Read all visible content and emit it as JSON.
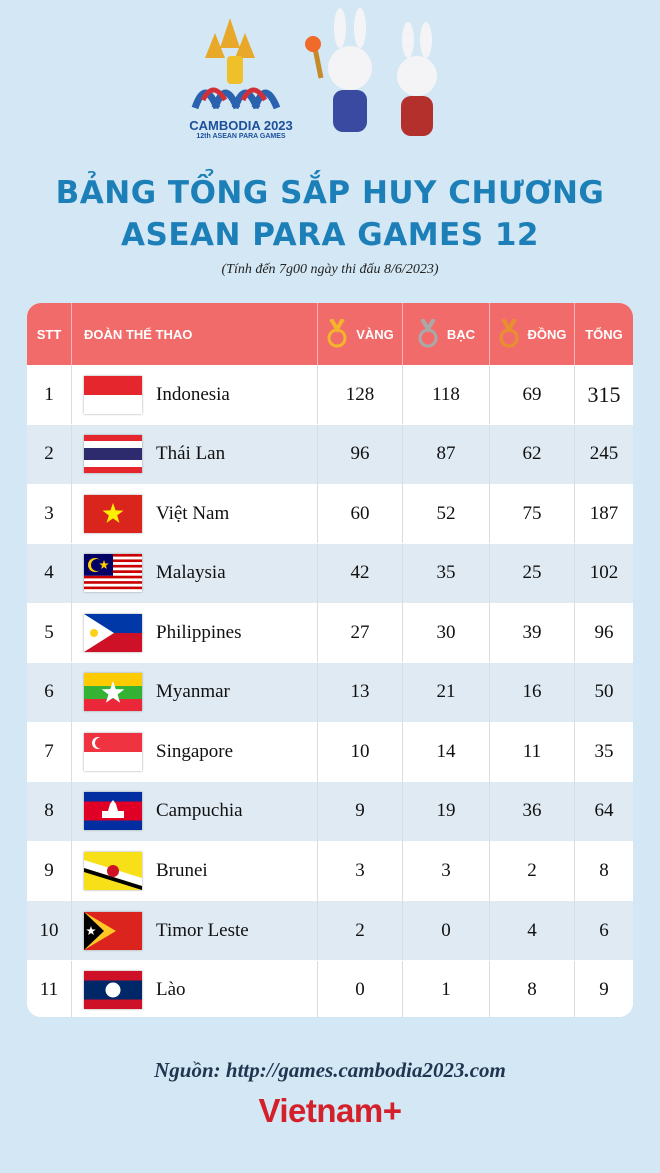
{
  "logo": {
    "name": "CAMBODIA 2023",
    "subtitle": "12th ASEAN PARA GAMES"
  },
  "header": {
    "title_line1": "BẢNG TỔNG SẮP HUY CHƯƠNG",
    "title_line2": "ASEAN PARA GAMES 12",
    "note": "(Tính đến 7g00 ngày thi đấu 8/6/2023)"
  },
  "table": {
    "columns": [
      "STT",
      "ĐOÀN THỂ THAO",
      "VÀNG",
      "BẠC",
      "ĐỒNG",
      "TỔNG"
    ],
    "rows": [
      [
        1,
        "Indonesia",
        128,
        118,
        69,
        315
      ],
      [
        2,
        "Thái Lan",
        96,
        87,
        62,
        245
      ],
      [
        3,
        "Việt Nam",
        60,
        52,
        75,
        187
      ],
      [
        4,
        "Malaysia",
        42,
        35,
        25,
        102
      ],
      [
        5,
        "Philippines",
        27,
        30,
        39,
        96
      ],
      [
        6,
        "Myanmar",
        13,
        21,
        16,
        50
      ],
      [
        7,
        "Singapore",
        10,
        14,
        11,
        35
      ],
      [
        8,
        "Campuchia",
        9,
        19,
        36,
        64
      ],
      [
        9,
        "Brunei",
        3,
        3,
        2,
        8
      ],
      [
        10,
        "Timor Leste",
        2,
        0,
        4,
        6
      ],
      [
        11,
        "Lào",
        0,
        1,
        8,
        9
      ]
    ]
  },
  "footer": {
    "source": "Nguồn: http://games.cambodia2023.com",
    "brand": "Vietnam+"
  }
}
